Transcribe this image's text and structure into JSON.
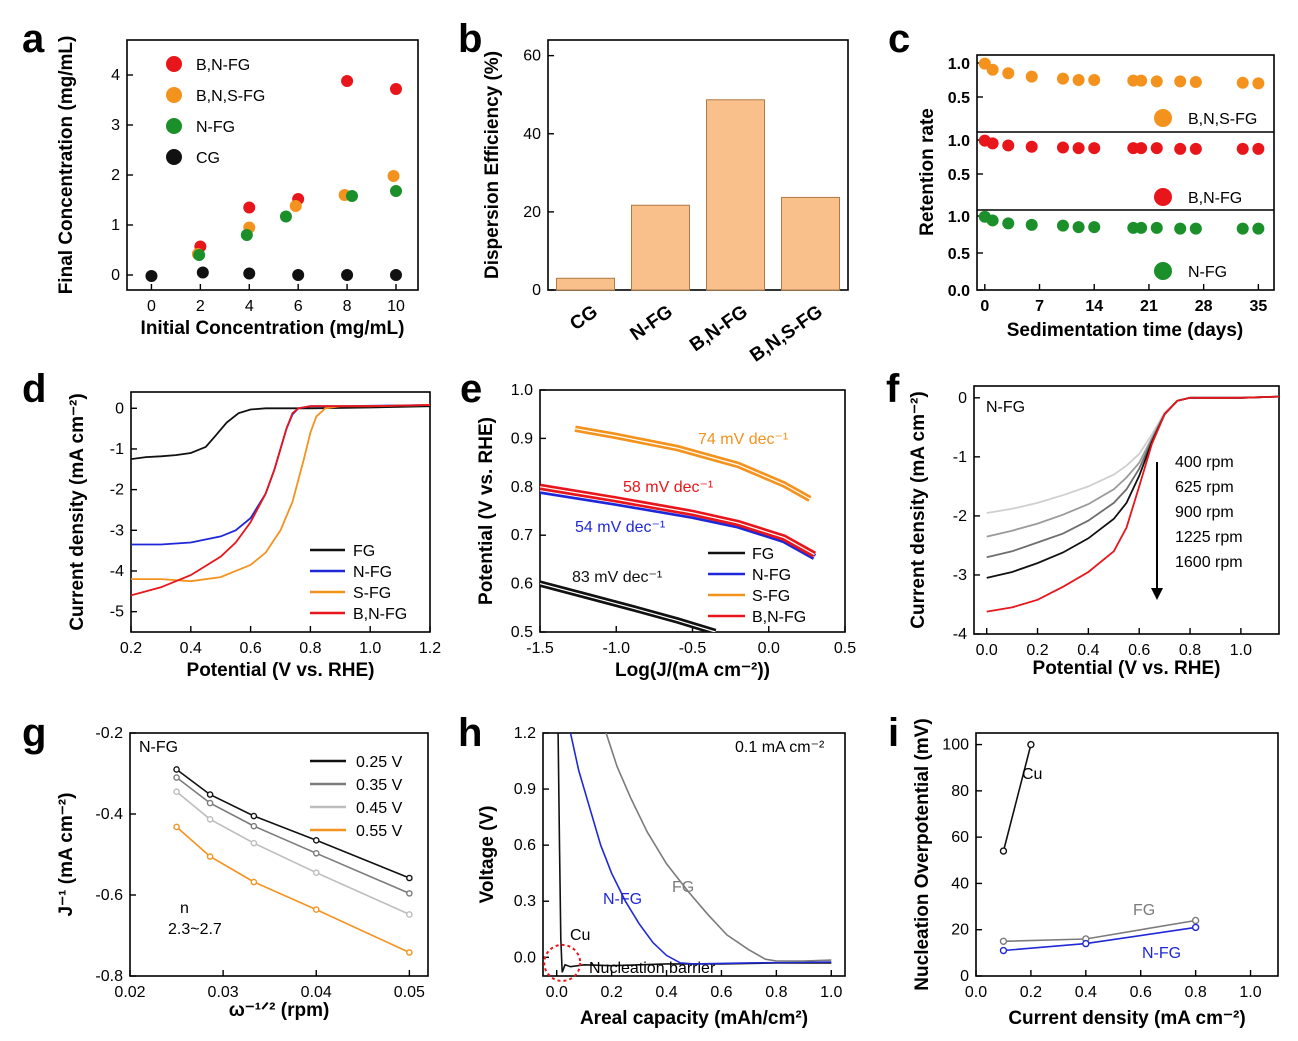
{
  "colors": {
    "red": "#e8151b",
    "orange": "#f4921e",
    "green": "#1a8f2a",
    "black": "#111111",
    "blue": "#1f28d8",
    "gray": "#7b7b7b",
    "lightgray": "#bdbdbd",
    "bar": "#f9c08c",
    "bar_edge": "#b07a45"
  },
  "chart_data": [
    {
      "panel": "a",
      "type": "scatter",
      "xlabel": "Initial Concentration (mg/mL)",
      "ylabel": "Final Concentration (mg/mL)",
      "xlim": [
        -1,
        10.9
      ],
      "ylim": [
        -0.3,
        4.7
      ],
      "xticks": [
        "0",
        "2",
        "4",
        "6",
        "8",
        "10"
      ],
      "yticks": [
        "0",
        "1",
        "2",
        "3",
        "4"
      ],
      "series": [
        {
          "name": "B,N-FG",
          "color": "red",
          "x": [
            2,
            4,
            6,
            8,
            10
          ],
          "y": [
            0.57,
            1.35,
            1.52,
            3.88,
            3.72
          ]
        },
        {
          "name": "B,N,S-FG",
          "color": "orange",
          "x": [
            1.9,
            4,
            5.9,
            7.9,
            9.9
          ],
          "y": [
            0.42,
            0.95,
            1.38,
            1.6,
            1.98
          ]
        },
        {
          "name": "N-FG",
          "color": "green",
          "x": [
            1.95,
            3.9,
            5.5,
            8.2,
            10
          ],
          "y": [
            0.4,
            0.8,
            1.17,
            1.58,
            1.68
          ]
        },
        {
          "name": "CG",
          "color": "black",
          "x": [
            0,
            2.1,
            4,
            6,
            8,
            10
          ],
          "y": [
            -0.02,
            0.05,
            0.03,
            0,
            0,
            0
          ]
        }
      ]
    },
    {
      "panel": "b",
      "type": "bar",
      "ylabel": "Dispersion Efficiency (%)",
      "ylim": [
        0,
        64
      ],
      "yticks": [
        "0",
        "20",
        "40",
        "60"
      ],
      "categories": [
        "CG",
        "N-FG",
        "B,N-FG",
        "B,N,S-FG"
      ],
      "values": [
        3,
        21.7,
        48.7,
        23.7
      ]
    },
    {
      "panel": "c",
      "type": "scatter",
      "xlabel": "Sedimentation time (days)",
      "ylabel": "Retention rate",
      "xlim": [
        -1,
        37
      ],
      "xticks": [
        "0",
        "7",
        "14",
        "21",
        "28",
        "35"
      ],
      "x": [
        0,
        1,
        3,
        6,
        10,
        12,
        14,
        19,
        20,
        22,
        25,
        27,
        33,
        35
      ],
      "series": [
        {
          "name": "B,N,S-FG",
          "color": "orange",
          "y": [
            0.99,
            0.9,
            0.85,
            0.8,
            0.77,
            0.75,
            0.75,
            0.74,
            0.74,
            0.73,
            0.73,
            0.72,
            0.71,
            0.7
          ]
        },
        {
          "name": "B,N-FG",
          "color": "red",
          "y": [
            0.99,
            0.95,
            0.92,
            0.9,
            0.89,
            0.88,
            0.88,
            0.88,
            0.88,
            0.88,
            0.87,
            0.87,
            0.87,
            0.87
          ]
        },
        {
          "name": "N-FG",
          "color": "green",
          "y": [
            0.99,
            0.94,
            0.9,
            0.88,
            0.87,
            0.85,
            0.85,
            0.84,
            0.84,
            0.84,
            0.83,
            0.83,
            0.83,
            0.83
          ]
        }
      ],
      "yticks_top": [
        "1.0",
        "0.5"
      ],
      "yticks_mid": [
        "1.0",
        "0.5"
      ],
      "yticks_bot": [
        "1.0",
        "0.5",
        "0.0"
      ]
    },
    {
      "panel": "d",
      "type": "line",
      "xlabel": "Potential (V vs. RHE)",
      "ylabel": "Current density (mA cm⁻²)",
      "xlim": [
        0.2,
        1.2
      ],
      "ylim": [
        -5.5,
        0.4
      ],
      "xticks": [
        "0.2",
        "0.4",
        "0.6",
        "0.8",
        "1.0",
        "1.2"
      ],
      "yticks": [
        "0",
        "-1",
        "-2",
        "-3",
        "-4",
        "-5"
      ],
      "series": [
        {
          "name": "FG",
          "color": "black",
          "x": [
            0.2,
            0.25,
            0.3,
            0.35,
            0.4,
            0.45,
            0.48,
            0.52,
            0.56,
            0.6,
            0.65,
            0.7,
            0.8,
            1.0,
            1.2
          ],
          "y": [
            -1.25,
            -1.2,
            -1.18,
            -1.15,
            -1.1,
            -0.95,
            -0.7,
            -0.35,
            -0.12,
            -0.03,
            0,
            0,
            0,
            0.02,
            0.05
          ]
        },
        {
          "name": "N-FG",
          "color": "blue",
          "x": [
            0.2,
            0.3,
            0.4,
            0.5,
            0.55,
            0.6,
            0.65,
            0.68,
            0.7,
            0.72,
            0.74,
            0.76,
            0.8,
            0.9,
            1.2
          ],
          "y": [
            -3.35,
            -3.35,
            -3.3,
            -3.15,
            -3.0,
            -2.7,
            -2.1,
            -1.5,
            -1.0,
            -0.5,
            -0.15,
            0,
            0.05,
            0.05,
            0.08
          ]
        },
        {
          "name": "S-FG",
          "color": "orange",
          "x": [
            0.2,
            0.3,
            0.4,
            0.5,
            0.6,
            0.65,
            0.7,
            0.74,
            0.78,
            0.8,
            0.82,
            0.85,
            0.9,
            1.0,
            1.2
          ],
          "y": [
            -4.2,
            -4.2,
            -4.25,
            -4.15,
            -3.85,
            -3.55,
            -3.0,
            -2.3,
            -1.2,
            -0.6,
            -0.2,
            0,
            0.05,
            0.05,
            0.08
          ]
        },
        {
          "name": "B,N-FG",
          "color": "red",
          "x": [
            0.2,
            0.3,
            0.4,
            0.5,
            0.55,
            0.6,
            0.65,
            0.68,
            0.7,
            0.72,
            0.74,
            0.76,
            0.8,
            1.0,
            1.2
          ],
          "y": [
            -4.6,
            -4.4,
            -4.1,
            -3.65,
            -3.3,
            -2.8,
            -2.1,
            -1.5,
            -1.0,
            -0.5,
            -0.12,
            0,
            0.05,
            0.05,
            0.08
          ]
        }
      ]
    },
    {
      "panel": "e",
      "type": "line",
      "xlabel": "Log(J/(mA cm⁻²))",
      "ylabel": "Potential (V vs. RHE)",
      "xlim": [
        -1.5,
        0.5
      ],
      "ylim": [
        0.5,
        1.0
      ],
      "xticks": [
        "-1.5",
        "-1.0",
        "-0.5",
        "0.0",
        "0.5"
      ],
      "yticks": [
        "0.5",
        "0.6",
        "0.7",
        "0.8",
        "0.9",
        "1.0"
      ],
      "series": [
        {
          "name": "FG",
          "color": "black",
          "x": [
            -1.5,
            -1.2,
            -0.9,
            -0.6,
            -0.35
          ],
          "y": [
            0.6,
            0.575,
            0.55,
            0.524,
            0.5
          ],
          "annotation": "83 mV dec⁻¹"
        },
        {
          "name": "N-FG",
          "color": "blue",
          "x": [
            -1.5,
            -1.0,
            -0.5,
            -0.2,
            0.1,
            0.3
          ],
          "y": [
            0.792,
            0.767,
            0.74,
            0.72,
            0.69,
            0.655
          ],
          "annotation": "54 mV dec⁻¹"
        },
        {
          "name": "S-FG",
          "color": "orange",
          "x": [
            -1.27,
            -1.0,
            -0.6,
            -0.2,
            0.1,
            0.27
          ],
          "y": [
            0.92,
            0.905,
            0.88,
            0.845,
            0.805,
            0.775
          ],
          "annotation": "74 mV dec⁻¹"
        },
        {
          "name": "B,N-FG",
          "color": "red",
          "x": [
            -1.5,
            -1.0,
            -0.5,
            -0.2,
            0.1,
            0.3
          ],
          "y": [
            0.8,
            0.774,
            0.746,
            0.725,
            0.695,
            0.66
          ],
          "annotation": "58 mV dec⁻¹"
        }
      ]
    },
    {
      "panel": "f",
      "type": "line",
      "xlabel": "Potential (V vs. RHE)",
      "ylabel": "Current density (mA cm⁻²)",
      "xlim": [
        -0.05,
        1.15
      ],
      "ylim": [
        -4.0,
        0.2
      ],
      "xticks": [
        "0.0",
        "0.2",
        "0.4",
        "0.6",
        "0.8",
        "1.0"
      ],
      "yticks": [
        "0",
        "-1",
        "-2",
        "-3",
        "-4"
      ],
      "sample": "N-FG",
      "x": [
        0.0,
        0.1,
        0.2,
        0.3,
        0.4,
        0.5,
        0.55,
        0.6,
        0.65,
        0.7,
        0.75,
        0.8,
        1.0,
        1.15
      ],
      "series": [
        {
          "name": "400 rpm",
          "color": "#cfcfcf",
          "y": [
            -1.95,
            -1.88,
            -1.78,
            -1.65,
            -1.5,
            -1.3,
            -1.15,
            -0.95,
            -0.62,
            -0.25,
            -0.05,
            0,
            0,
            0.02
          ]
        },
        {
          "name": "625 rpm",
          "color": "#9a9a9a",
          "y": [
            -2.35,
            -2.25,
            -2.13,
            -1.98,
            -1.8,
            -1.55,
            -1.35,
            -1.1,
            -0.68,
            -0.27,
            -0.05,
            0,
            0,
            0.02
          ]
        },
        {
          "name": "900 rpm",
          "color": "#6e6e6e",
          "y": [
            -2.7,
            -2.6,
            -2.45,
            -2.3,
            -2.08,
            -1.78,
            -1.55,
            -1.2,
            -0.72,
            -0.28,
            -0.05,
            0,
            0,
            0.02
          ]
        },
        {
          "name": "1225 rpm",
          "color": "#111111",
          "y": [
            -3.05,
            -2.95,
            -2.8,
            -2.62,
            -2.38,
            -2.05,
            -1.78,
            -1.32,
            -0.75,
            -0.28,
            -0.05,
            0,
            0,
            0.02
          ]
        },
        {
          "name": "1600 rpm",
          "color": "#e8151b",
          "y": [
            -3.62,
            -3.55,
            -3.42,
            -3.2,
            -2.95,
            -2.6,
            -2.2,
            -1.5,
            -0.78,
            -0.28,
            -0.05,
            0,
            0,
            0.02
          ]
        }
      ]
    },
    {
      "panel": "g",
      "type": "line",
      "xlabel": "ω⁻¹ᐟ² (rpm)",
      "ylabel": "J⁻¹ (mA cm⁻²)",
      "xlim": [
        0.02,
        0.052
      ],
      "ylim": [
        -0.8,
        -0.2
      ],
      "xticks": [
        "0.02",
        "0.03",
        "0.04",
        "0.05"
      ],
      "yticks": [
        "-0.2",
        "-0.4",
        "-0.6",
        "-0.8"
      ],
      "sample": "N-FG",
      "note_line1": "n",
      "note_line2": "2.3~2.7",
      "x": [
        0.025,
        0.0286,
        0.0333,
        0.04,
        0.05
      ],
      "series": [
        {
          "name": "0.25 V",
          "color": "#111111",
          "y": [
            -0.29,
            -0.352,
            -0.405,
            -0.465,
            -0.558
          ]
        },
        {
          "name": "0.35 V",
          "color": "#7b7b7b",
          "y": [
            -0.31,
            -0.373,
            -0.43,
            -0.497,
            -0.596
          ]
        },
        {
          "name": "0.45 V",
          "color": "#bdbdbd",
          "y": [
            -0.345,
            -0.413,
            -0.472,
            -0.545,
            -0.648
          ]
        },
        {
          "name": "0.55 V",
          "color": "#f4921e",
          "y": [
            -0.432,
            -0.505,
            -0.568,
            -0.636,
            -0.742
          ]
        }
      ]
    },
    {
      "panel": "h",
      "type": "line",
      "xlabel": "Areal capacity (mAh/cm²)",
      "ylabel": "Voltage (V)",
      "xlim": [
        -0.05,
        1.05
      ],
      "ylim": [
        -0.1,
        1.2
      ],
      "xticks": [
        "0.0",
        "0.2",
        "0.4",
        "0.6",
        "0.8",
        "1.0"
      ],
      "yticks": [
        "1.2",
        "0.9",
        "0.6",
        "0.3",
        "0.0"
      ],
      "rate": "0.1 mA cm⁻²",
      "barrier_label": "Nucleation barrier",
      "series": [
        {
          "name": "Cu",
          "color": "#111111",
          "x": [
            0.005,
            0.01,
            0.015,
            0.02,
            0.03,
            0.05,
            0.1,
            0.2,
            0.4,
            0.6,
            0.8,
            1.0
          ],
          "y": [
            1.2,
            0.6,
            0.1,
            -0.08,
            -0.04,
            -0.05,
            -0.04,
            -0.045,
            -0.035,
            -0.035,
            -0.03,
            -0.03
          ]
        },
        {
          "name": "N-FG",
          "color": "#1f28d8",
          "x": [
            0.05,
            0.08,
            0.12,
            0.16,
            0.2,
            0.25,
            0.3,
            0.35,
            0.4,
            0.45,
            0.5,
            0.7,
            1.0
          ],
          "y": [
            1.2,
            1.0,
            0.8,
            0.6,
            0.45,
            0.3,
            0.18,
            0.08,
            0.01,
            -0.03,
            -0.035,
            -0.03,
            -0.025
          ]
        },
        {
          "name": "FG",
          "color": "#7b7b7b",
          "x": [
            0.18,
            0.22,
            0.27,
            0.33,
            0.4,
            0.48,
            0.55,
            0.62,
            0.7,
            0.76,
            0.8,
            0.9,
            1.0
          ],
          "y": [
            1.2,
            1.02,
            0.85,
            0.67,
            0.5,
            0.35,
            0.23,
            0.12,
            0.04,
            -0.01,
            -0.02,
            -0.02,
            -0.015
          ]
        }
      ]
    },
    {
      "panel": "i",
      "type": "line",
      "xlabel": "Current density (mA cm⁻²)",
      "ylabel": "Nucleation Overpotential (mV)",
      "xlim": [
        0,
        1.1
      ],
      "ylim": [
        0,
        105
      ],
      "xticks": [
        "0.0",
        "0.2",
        "0.4",
        "0.6",
        "0.8",
        "1.0"
      ],
      "yticks": [
        "0",
        "20",
        "40",
        "60",
        "80",
        "100"
      ],
      "series": [
        {
          "name": "Cu",
          "color": "#111111",
          "x": [
            0.1,
            0.2
          ],
          "y": [
            54,
            100
          ]
        },
        {
          "name": "FG",
          "color": "#7b7b7b",
          "x": [
            0.1,
            0.4,
            0.8
          ],
          "y": [
            15,
            16,
            24
          ]
        },
        {
          "name": "N-FG",
          "color": "#1f28d8",
          "x": [
            0.1,
            0.4,
            0.8
          ],
          "y": [
            11,
            14,
            21
          ]
        }
      ]
    }
  ],
  "panel_labels": [
    "a",
    "b",
    "c",
    "d",
    "e",
    "f",
    "g",
    "h",
    "i"
  ]
}
